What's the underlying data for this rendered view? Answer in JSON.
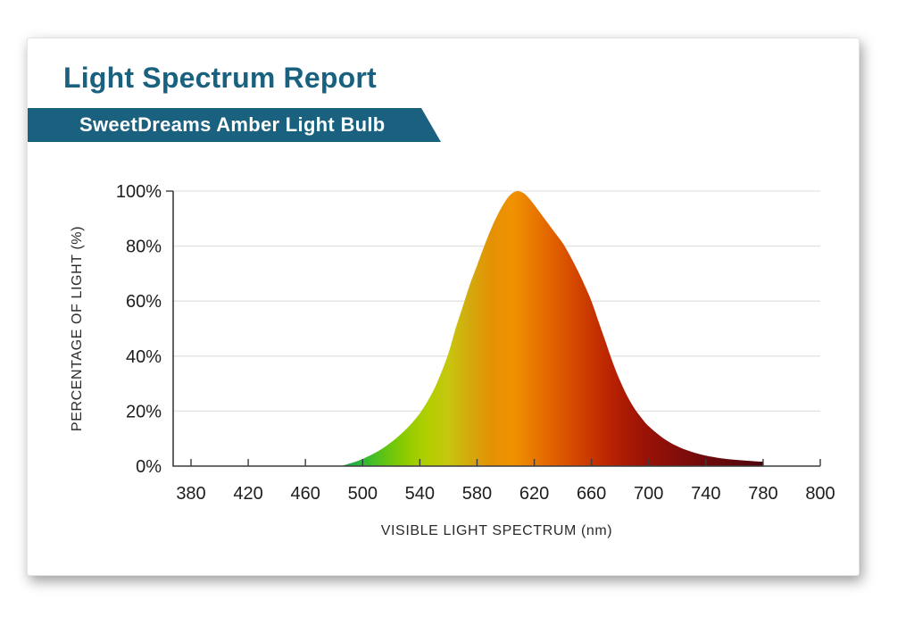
{
  "header": {
    "title": "Light Spectrum Report",
    "banner_label": "SweetDreams Amber Light Bulb"
  },
  "colors": {
    "accent_teal": "#1a617f",
    "banner_text": "#ffffff",
    "grid": "#e3e3e3",
    "axis": "#3c3c3c",
    "tick_text": "#1d1d1d"
  },
  "chart_data": {
    "type": "area",
    "title": "Light Spectrum Report",
    "subtitle": "SweetDreams Amber Light Bulb",
    "xlabel": "VISIBLE LIGHT SPECTRUM (nm)",
    "ylabel": "PERCENTAGE OF LIGHT (%)",
    "x_tick_labels": [
      "380",
      "420",
      "460",
      "500",
      "540",
      "580",
      "620",
      "660",
      "700",
      "740",
      "780",
      "800"
    ],
    "x_tick_wavelengths": [
      380,
      420,
      460,
      500,
      540,
      580,
      620,
      660,
      700,
      740,
      780,
      800
    ],
    "y_tick_labels": [
      "0%",
      "20%",
      "40%",
      "60%",
      "80%",
      "100%"
    ],
    "y_tick_values": [
      0,
      20,
      40,
      60,
      80,
      100
    ],
    "ylim": [
      0,
      100
    ],
    "grid": true,
    "legend_position": "none",
    "peak_nm": 607,
    "peak_pct": 100,
    "curve_points_nm_pct": [
      [
        485,
        0
      ],
      [
        490,
        0.8
      ],
      [
        495,
        1.6
      ],
      [
        500,
        2.6
      ],
      [
        505,
        3.8
      ],
      [
        510,
        5.2
      ],
      [
        515,
        6.8
      ],
      [
        520,
        8.7
      ],
      [
        525,
        10.8
      ],
      [
        530,
        13.2
      ],
      [
        535,
        16
      ],
      [
        540,
        19.2
      ],
      [
        545,
        23.2
      ],
      [
        550,
        28
      ],
      [
        555,
        34
      ],
      [
        560,
        41
      ],
      [
        565,
        50
      ],
      [
        570,
        58
      ],
      [
        575,
        66
      ],
      [
        580,
        73
      ],
      [
        585,
        80
      ],
      [
        590,
        86.5
      ],
      [
        595,
        92
      ],
      [
        600,
        96.5
      ],
      [
        604,
        99
      ],
      [
        608,
        100
      ],
      [
        612,
        99.4
      ],
      [
        616,
        97.6
      ],
      [
        620,
        95
      ],
      [
        625,
        91.5
      ],
      [
        630,
        88
      ],
      [
        635,
        84.5
      ],
      [
        640,
        81
      ],
      [
        645,
        76.5
      ],
      [
        650,
        71.5
      ],
      [
        655,
        66
      ],
      [
        660,
        60
      ],
      [
        665,
        52.5
      ],
      [
        670,
        45
      ],
      [
        675,
        37.5
      ],
      [
        680,
        31
      ],
      [
        685,
        25.5
      ],
      [
        690,
        21
      ],
      [
        695,
        17.5
      ],
      [
        700,
        14.5
      ],
      [
        710,
        10.2
      ],
      [
        720,
        7.2
      ],
      [
        730,
        5.2
      ],
      [
        740,
        3.8
      ],
      [
        750,
        2.9
      ],
      [
        760,
        2.3
      ],
      [
        770,
        1.9
      ],
      [
        780,
        1.6
      ]
    ],
    "gradient_stops_nm_color": [
      [
        485,
        "#13a74f"
      ],
      [
        500,
        "#2db737"
      ],
      [
        515,
        "#5fc414"
      ],
      [
        530,
        "#8ecb00"
      ],
      [
        545,
        "#b2cf02"
      ],
      [
        560,
        "#c7c60e"
      ],
      [
        575,
        "#d3a90e"
      ],
      [
        590,
        "#e49104"
      ],
      [
        605,
        "#f09200"
      ],
      [
        620,
        "#e97800"
      ],
      [
        635,
        "#e05e00"
      ],
      [
        650,
        "#d34500"
      ],
      [
        665,
        "#c32e00"
      ],
      [
        680,
        "#b01d03"
      ],
      [
        695,
        "#9d1306"
      ],
      [
        715,
        "#890e09"
      ],
      [
        740,
        "#6f0a0b"
      ],
      [
        780,
        "#4d060c"
      ]
    ]
  }
}
